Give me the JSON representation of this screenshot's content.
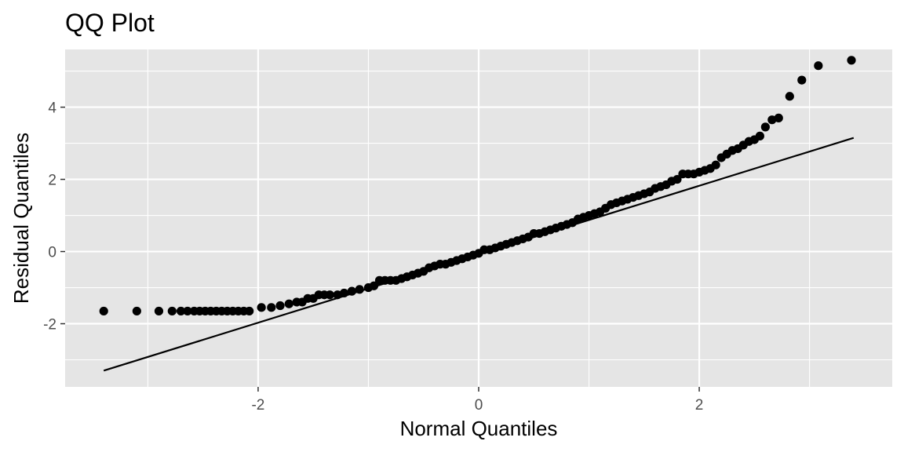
{
  "chart_data": {
    "type": "scatter",
    "title": "QQ Plot",
    "xlabel": "Normal Quantiles",
    "ylabel": "Residual Quantiles",
    "xlim": [
      -3.75,
      3.75
    ],
    "ylim": [
      -3.75,
      5.6
    ],
    "x_ticks": [
      -2,
      0,
      2
    ],
    "x_tick_labels": [
      "-2",
      "0",
      "2"
    ],
    "y_ticks": [
      -2,
      0,
      2,
      4
    ],
    "y_tick_labels": [
      "-2",
      "0",
      "2",
      "4"
    ],
    "grid": true,
    "colors": {
      "panel_background": "#e5e5e5",
      "grid": "#ffffff",
      "points": "#000000",
      "reference_line": "#000000",
      "tick_label": "#4d4d4d",
      "tick_mark": "#333333"
    },
    "series": [
      {
        "kind": "points",
        "x": [
          -3.4,
          -3.1,
          -2.9,
          -2.78,
          -2.7,
          -2.64,
          -2.58,
          -2.53,
          -2.48,
          -2.43,
          -2.38,
          -2.33,
          -2.28,
          -2.23,
          -2.18,
          -2.13,
          -2.08,
          -1.97,
          -1.88,
          -1.8,
          -1.72,
          -1.65,
          -1.6,
          -1.55,
          -1.5,
          -1.45,
          -1.4,
          -1.35,
          -1.28,
          -1.22,
          -1.15,
          -1.08,
          -1.0,
          -0.95,
          -0.9,
          -0.85,
          -0.8,
          -0.75,
          -0.7,
          -0.65,
          -0.6,
          -0.55,
          -0.5,
          -0.45,
          -0.4,
          -0.35,
          -0.3,
          -0.25,
          -0.2,
          -0.15,
          -0.1,
          -0.05,
          0.0,
          0.05,
          0.1,
          0.15,
          0.2,
          0.25,
          0.3,
          0.35,
          0.4,
          0.45,
          0.5,
          0.55,
          0.6,
          0.65,
          0.7,
          0.75,
          0.8,
          0.85,
          0.9,
          0.95,
          1.0,
          1.05,
          1.1,
          1.15,
          1.2,
          1.25,
          1.3,
          1.35,
          1.4,
          1.45,
          1.5,
          1.55,
          1.6,
          1.65,
          1.7,
          1.75,
          1.8,
          1.85,
          1.9,
          1.95,
          2.0,
          2.05,
          2.1,
          2.15,
          2.2,
          2.25,
          2.3,
          2.35,
          2.4,
          2.45,
          2.5,
          2.55,
          2.6,
          2.66,
          2.72,
          2.82,
          2.93,
          3.08,
          3.38
        ],
        "y": [
          -1.65,
          -1.65,
          -1.65,
          -1.65,
          -1.65,
          -1.65,
          -1.65,
          -1.65,
          -1.65,
          -1.65,
          -1.65,
          -1.65,
          -1.65,
          -1.65,
          -1.65,
          -1.65,
          -1.65,
          -1.55,
          -1.55,
          -1.5,
          -1.45,
          -1.4,
          -1.4,
          -1.3,
          -1.3,
          -1.2,
          -1.2,
          -1.2,
          -1.2,
          -1.15,
          -1.1,
          -1.05,
          -1.0,
          -0.95,
          -0.8,
          -0.8,
          -0.8,
          -0.8,
          -0.75,
          -0.7,
          -0.65,
          -0.6,
          -0.55,
          -0.45,
          -0.4,
          -0.35,
          -0.35,
          -0.3,
          -0.25,
          -0.2,
          -0.15,
          -0.1,
          -0.05,
          0.05,
          0.05,
          0.1,
          0.15,
          0.2,
          0.25,
          0.3,
          0.35,
          0.4,
          0.5,
          0.5,
          0.55,
          0.6,
          0.65,
          0.7,
          0.75,
          0.8,
          0.9,
          0.95,
          1.0,
          1.05,
          1.1,
          1.2,
          1.3,
          1.35,
          1.4,
          1.45,
          1.5,
          1.55,
          1.6,
          1.65,
          1.75,
          1.8,
          1.85,
          1.95,
          2.0,
          2.15,
          2.15,
          2.15,
          2.2,
          2.25,
          2.3,
          2.4,
          2.6,
          2.7,
          2.8,
          2.85,
          2.95,
          3.05,
          3.1,
          3.2,
          3.45,
          3.65,
          3.7,
          4.3,
          4.75,
          5.15,
          5.3
        ]
      },
      {
        "kind": "reference_line",
        "x": [
          -3.4,
          3.4
        ],
        "y": [
          -3.3,
          3.15
        ]
      }
    ]
  }
}
